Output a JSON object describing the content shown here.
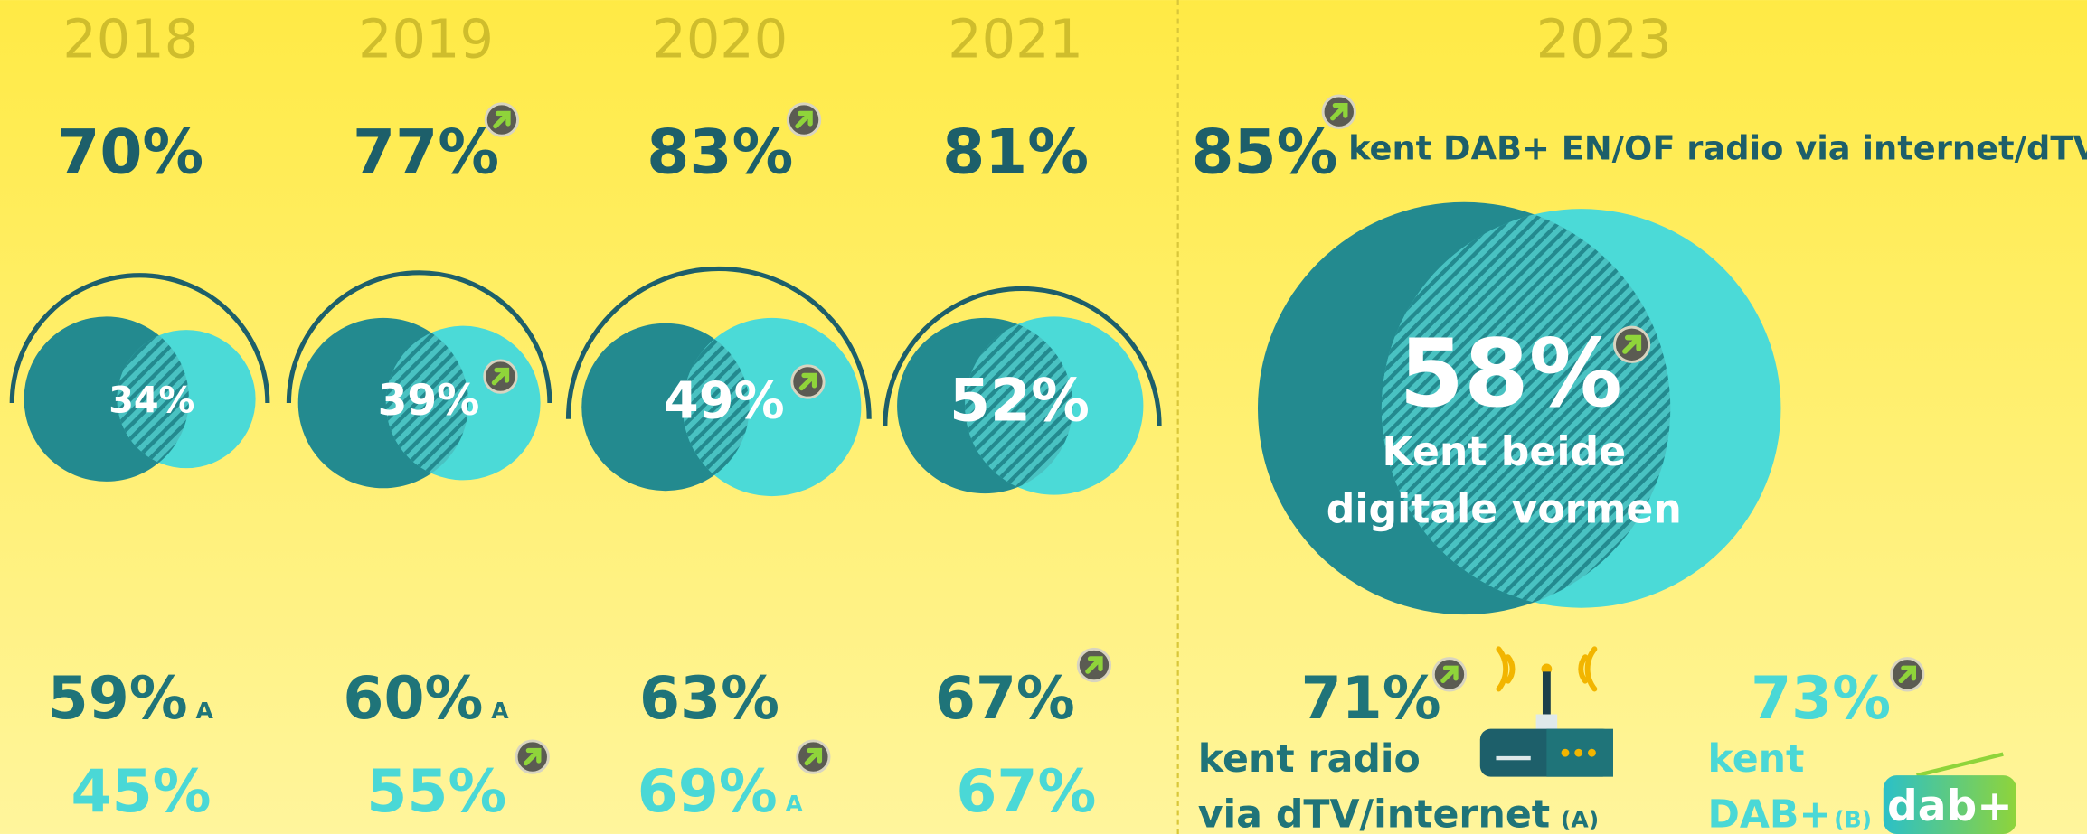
{
  "columns": [
    {
      "year": "2018",
      "known": "70%",
      "both": "34%",
      "radio": "59%",
      "radio_mark": "A",
      "dab": "45%"
    },
    {
      "year": "2019",
      "known": "77%",
      "both": "39%",
      "radio": "60%",
      "radio_mark": "A",
      "dab": "55%"
    },
    {
      "year": "2020",
      "known": "83%",
      "both": "49%",
      "radio": "63%",
      "dab": "69%",
      "dab_mark": "A"
    },
    {
      "year": "2021",
      "known": "81%",
      "both": "52%",
      "radio": "67%",
      "dab": "67%"
    }
  ],
  "latest": {
    "year": "2023",
    "known": "85%",
    "known_label": "kent DAB+ EN/OF radio via internet/dTV",
    "both": "58%",
    "both_label_1": "Kent beide",
    "both_label_2": "digitale vormen",
    "radio": "71%",
    "radio_label_1": "kent radio",
    "radio_label_2": "via dTV/internet",
    "radio_mark": "(A)",
    "dab": "73%",
    "dab_label_1": "kent",
    "dab_label_2": "DAB+",
    "dab_mark": "(B)",
    "logo": "dab+"
  }
}
